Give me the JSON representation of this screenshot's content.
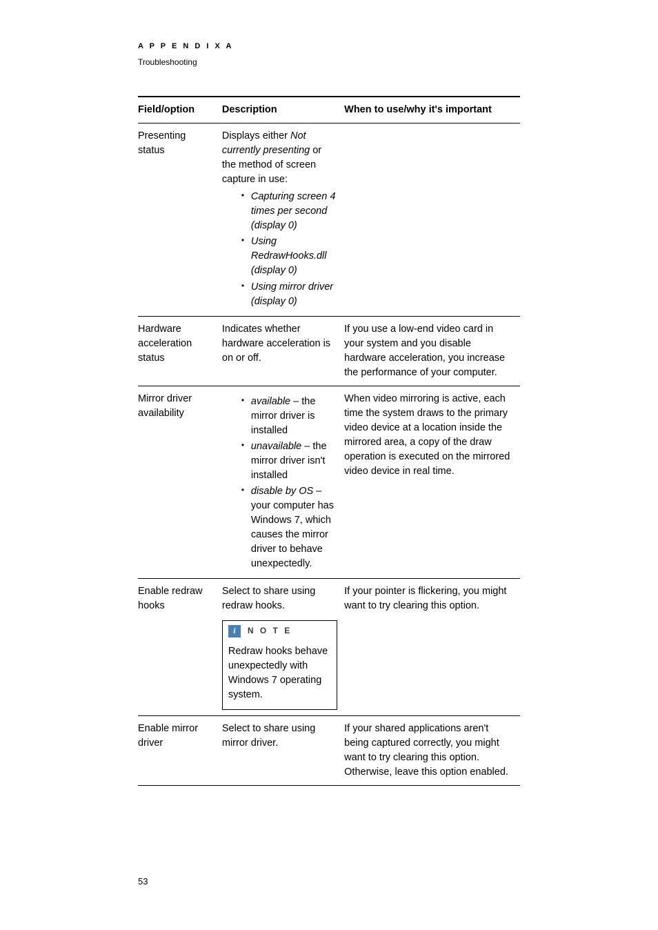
{
  "header": {
    "appendix_label": "A P P E N D I X   A",
    "subtitle": "Troubleshooting"
  },
  "table": {
    "columns": [
      "Field/option",
      "Description",
      "When to use/why it's important"
    ],
    "rows": {
      "presenting_status": {
        "field": "Presenting status",
        "desc_prefix": "Displays either ",
        "desc_italic1": "Not currently presenting",
        "desc_mid": " or the method of screen capture in use:",
        "bullets": [
          "Capturing screen 4 times per second (display 0)",
          "Using RedrawHooks.dll (display 0)",
          "Using mirror driver (display 0)"
        ],
        "when": ""
      },
      "hardware_accel": {
        "field": "Hardware acceleration status",
        "desc": "Indicates whether hardware acceleration is on or off.",
        "when": "If you use a low-end video card in your system and you disable hardware acceleration, you increase the performance of your computer."
      },
      "mirror_driver": {
        "field": "Mirror driver availability",
        "bullets": [
          {
            "italic": "available",
            "rest": " – the mirror driver is installed"
          },
          {
            "italic": "unavailable",
            "rest": " – the mirror driver isn't installed"
          },
          {
            "italic": "disable by OS",
            "rest": " – your computer has Windows 7, which causes the mirror driver to behave unexpectedly."
          }
        ],
        "when": "When video mirroring is active, each time the system draws to the primary video device at a location inside the mirrored area, a copy of the draw operation is executed on the mirrored video device in real time."
      },
      "enable_redraw": {
        "field": "Enable redraw hooks",
        "desc": "Select to share using redraw hooks.",
        "note_label": "N O T E",
        "note_body": "Redraw hooks behave unexpectedly with Windows 7 operating system.",
        "when": "If your pointer is flickering, you might want to try clearing this option."
      },
      "enable_mirror": {
        "field": "Enable mirror driver",
        "desc": "Select to share using mirror driver.",
        "when": "If your shared applications aren't being captured correctly, you might want to try clearing this option. Otherwise, leave this option enabled."
      }
    }
  },
  "page_number": "53"
}
